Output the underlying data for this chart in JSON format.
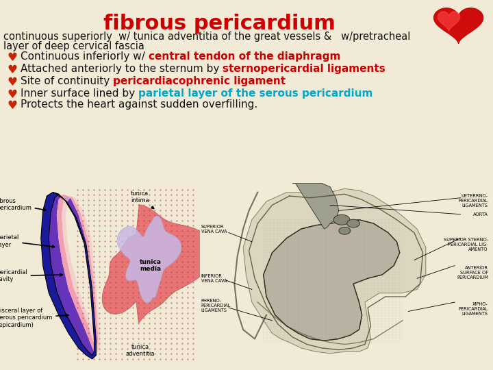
{
  "title": "fibrous pericardium",
  "title_color": "#cc0000",
  "title_fontsize": 22,
  "bg_color": "#f0ead6",
  "subtitle_line1": "continuous superiorly  w/ tunica adventitia of the great vessels &   w/pretracheal",
  "subtitle_line2": "layer of deep cervical fascia",
  "subtitle_color": "#111111",
  "subtitle_fontsize": 10.5,
  "bullet_color": "#cc2200",
  "bullet_items": [
    {
      "prefix": "Continuous inferiorly w/ ",
      "highlight": "central tendon of the diaphragm",
      "highlight_color": "#cc0000"
    },
    {
      "prefix": "Attached anteriorly to the sternum by ",
      "highlight": "sternopericardial ligaments",
      "highlight_color": "#cc0000"
    },
    {
      "prefix": "Site of continuity ",
      "highlight": "pericardiacophrenic ligament",
      "highlight_color": "#cc0000"
    },
    {
      "prefix": "Inner surface lined by ",
      "highlight": "parietal layer of the serous pericardium",
      "highlight_color": "#00aacc"
    },
    {
      "prefix": "Protects the heart against sudden overfilling.",
      "highlight": "",
      "highlight_color": "#111111"
    }
  ],
  "bullet_fontsize": 11,
  "prefix_color": "#111111",
  "left_labels": {
    "fibrous_pericardium": "fibrous\npericardium",
    "parietal_layer": "parietal\nlayer",
    "pericardial_cavity": "pericardial\ncavity",
    "visceral_layer": "visceral layer of\nserous pericardium\n(epicardium)",
    "tunica_intima": "tunica\nintima",
    "tunica_media": "tunica\nmedia",
    "tunica_adventitia": "tunica\nadventitia"
  },
  "right_labels": {
    "superior_vena_cava": "SUPERIOR\nVENA CAVA",
    "inferior_vena_cava": "INFERIOR\nVENA CAVA",
    "phreno": "PHRENO-\nPERICARDIAL\nLIGAMENTS",
    "aorta": "AORTA",
    "superior_sterno": "SUPERIOR STERNO-\nPERICARDIAL LIG-\nAMENTO",
    "anterior_surface": "ANTERIOR\nSURFACE OF\nPERICARDIUM",
    "xipho": "XIPHO-\nPERICARDIAL\nLIGAMENTS",
    "utero": "UETERRNO-\nPERICARDIAL\nLIGAMENTS"
  }
}
